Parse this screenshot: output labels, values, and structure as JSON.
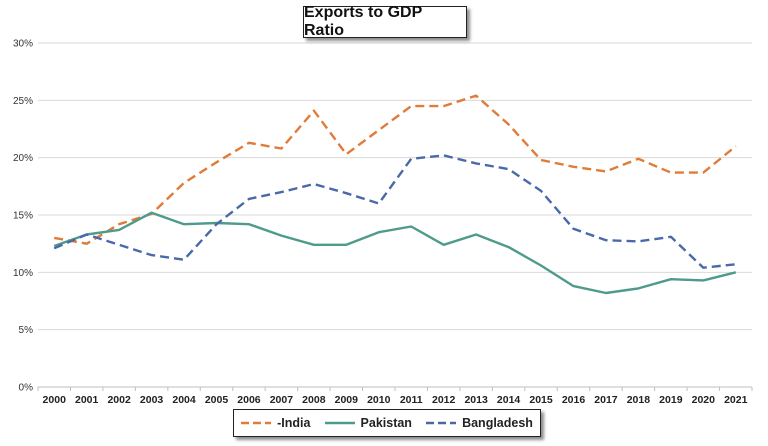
{
  "chart_data": {
    "type": "line",
    "title": "Exports to GDP Ratio",
    "xlabel": "",
    "ylabel": "",
    "categories": [
      "2000",
      "2001",
      "2002",
      "2003",
      "2004",
      "2005",
      "2006",
      "2007",
      "2008",
      "2009",
      "2010",
      "2011",
      "2012",
      "2013",
      "2014",
      "2015",
      "2016",
      "2017",
      "2018",
      "2019",
      "2020",
      "2021"
    ],
    "ylim": [
      0,
      30
    ],
    "yticks": [
      0,
      5,
      10,
      15,
      20,
      25,
      30
    ],
    "ytick_labels": [
      "0%",
      "5%",
      "10%",
      "15%",
      "20%",
      "25%",
      "30%"
    ],
    "grid": true,
    "legend_position": "bottom",
    "series": [
      {
        "name": "India",
        "legend_label": "-India",
        "color": "#E07B39",
        "dash": "dashed",
        "values": [
          13.0,
          12.5,
          14.2,
          15.1,
          17.8,
          19.6,
          21.3,
          20.8,
          24.1,
          20.3,
          22.4,
          24.5,
          24.5,
          25.4,
          22.9,
          19.8,
          19.2,
          18.8,
          19.9,
          18.7,
          18.7,
          21.0
        ]
      },
      {
        "name": "Pakistan",
        "legend_label": "Pakistan",
        "color": "#4E9A8B",
        "dash": "solid",
        "values": [
          12.3,
          13.3,
          13.7,
          15.2,
          14.2,
          14.3,
          14.2,
          13.2,
          12.4,
          12.4,
          13.5,
          14.0,
          12.4,
          13.3,
          12.2,
          10.6,
          8.8,
          8.2,
          8.6,
          9.4,
          9.3,
          10.0
        ]
      },
      {
        "name": "Bangladesh",
        "legend_label": "Bangladesh",
        "color": "#4A69A8",
        "dash": "dashed",
        "values": [
          12.1,
          13.3,
          12.4,
          11.5,
          11.1,
          14.2,
          16.4,
          17.0,
          17.7,
          16.9,
          16.0,
          19.9,
          20.2,
          19.5,
          19.0,
          17.1,
          13.8,
          12.8,
          12.7,
          13.1,
          10.4,
          10.7
        ]
      }
    ]
  }
}
